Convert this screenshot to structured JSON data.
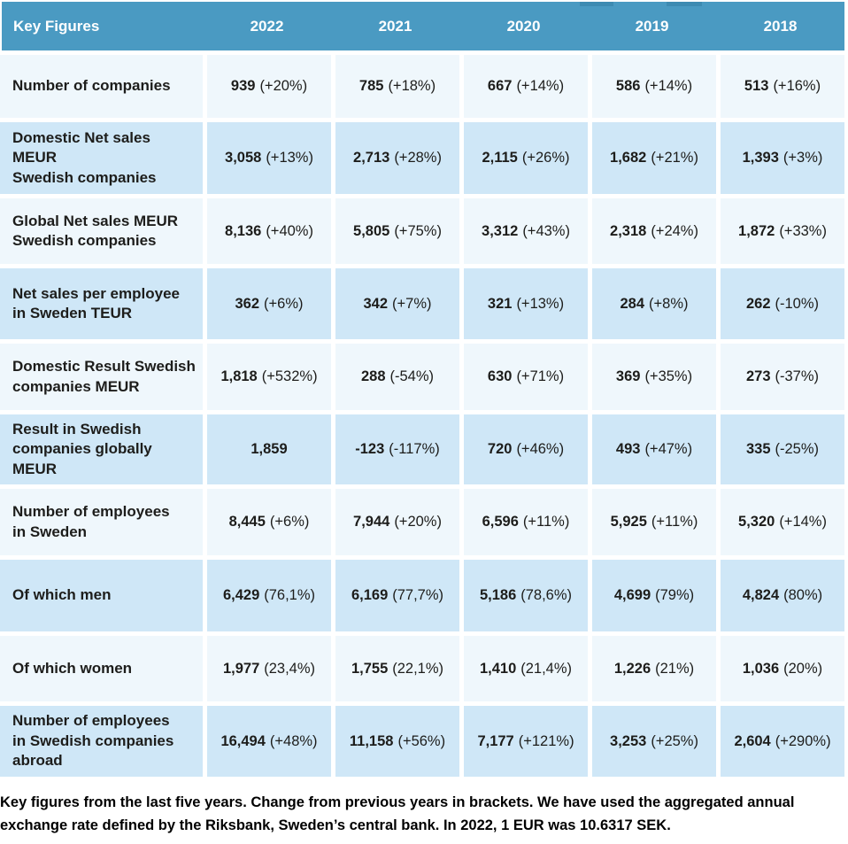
{
  "table": {
    "header": {
      "label": "Key Figures",
      "years": [
        "2022",
        "2021",
        "2020",
        "2019",
        "2018"
      ]
    },
    "rows": [
      {
        "label": "Number of companies",
        "cells": [
          {
            "num": "939",
            "change": "(+20%)"
          },
          {
            "num": "785",
            "change": "(+18%)"
          },
          {
            "num": "667",
            "change": "(+14%)"
          },
          {
            "num": "586",
            "change": "(+14%)"
          },
          {
            "num": "513",
            "change": "(+16%)"
          }
        ]
      },
      {
        "label": "Domestic Net sales MEUR\nSwedish companies",
        "cells": [
          {
            "num": "3,058",
            "change": "(+13%)"
          },
          {
            "num": "2,713",
            "change": "(+28%)"
          },
          {
            "num": "2,115",
            "change": "(+26%)"
          },
          {
            "num": "1,682",
            "change": "(+21%)"
          },
          {
            "num": "1,393",
            "change": "(+3%)"
          }
        ]
      },
      {
        "label": "Global Net sales MEUR\nSwedish companies",
        "cells": [
          {
            "num": "8,136",
            "change": "(+40%)"
          },
          {
            "num": "5,805",
            "change": "(+75%)"
          },
          {
            "num": "3,312",
            "change": "(+43%)"
          },
          {
            "num": "2,318",
            "change": "(+24%)"
          },
          {
            "num": "1,872",
            "change": "(+33%)"
          }
        ]
      },
      {
        "label": "Net sales per employee\nin Sweden TEUR",
        "cells": [
          {
            "num": "362",
            "change": "(+6%)"
          },
          {
            "num": "342",
            "change": "(+7%)"
          },
          {
            "num": "321",
            "change": "(+13%)"
          },
          {
            "num": "284",
            "change": "(+8%)"
          },
          {
            "num": "262",
            "change": "(-10%)"
          }
        ]
      },
      {
        "label": "Domestic Result Swedish\ncompanies MEUR",
        "cells": [
          {
            "num": "1,818",
            "change": "(+532%)"
          },
          {
            "num": "288",
            "change": "(-54%)"
          },
          {
            "num": "630",
            "change": "(+71%)"
          },
          {
            "num": "369",
            "change": "(+35%)"
          },
          {
            "num": "273",
            "change": "(-37%)"
          }
        ]
      },
      {
        "label": "Result in Swedish\ncompanies globally MEUR",
        "cells": [
          {
            "num": "1,859",
            "change": ""
          },
          {
            "num": "-123",
            "change": "(-117%)"
          },
          {
            "num": "720",
            "change": "(+46%)"
          },
          {
            "num": "493",
            "change": "(+47%)"
          },
          {
            "num": "335",
            "change": "(-25%)"
          }
        ]
      },
      {
        "label": "Number of employees\nin Sweden",
        "cells": [
          {
            "num": "8,445",
            "change": "(+6%)"
          },
          {
            "num": "7,944",
            "change": "(+20%)"
          },
          {
            "num": "6,596",
            "change": "(+11%)"
          },
          {
            "num": "5,925",
            "change": "(+11%)"
          },
          {
            "num": "5,320",
            "change": "(+14%)"
          }
        ]
      },
      {
        "label": "Of which men",
        "cells": [
          {
            "num": "6,429",
            "change": "(76,1%)"
          },
          {
            "num": "6,169",
            "change": "(77,7%)"
          },
          {
            "num": "5,186",
            "change": "(78,6%)"
          },
          {
            "num": "4,699",
            "change": "(79%)"
          },
          {
            "num": "4,824",
            "change": "(80%)"
          }
        ]
      },
      {
        "label": "Of which women",
        "cells": [
          {
            "num": "1,977",
            "change": "(23,4%)"
          },
          {
            "num": "1,755",
            "change": "(22,1%)"
          },
          {
            "num": "1,410",
            "change": "(21,4%)"
          },
          {
            "num": "1,226",
            "change": "(21%)"
          },
          {
            "num": "1,036",
            "change": "(20%)"
          }
        ]
      },
      {
        "label": "Number of employees\nin Swedish companies\nabroad",
        "cells": [
          {
            "num": "16,494",
            "change": "(+48%)"
          },
          {
            "num": "11,158",
            "change": "(+56%)"
          },
          {
            "num": "7,177",
            "change": "(+121%)"
          },
          {
            "num": "3,253",
            "change": "(+25%)"
          },
          {
            "num": "2,604",
            "change": "(+290%)"
          }
        ]
      }
    ]
  },
  "caption": "Key figures from the last five years. Change from previous years in brackets. We have used the aggregated annual exchange rate defined by the Riksbank, Sweden’s central bank. In 2022, 1 EUR was 10.6317 SEK.",
  "colors": {
    "header_bg": "#4a9ac2",
    "header_text": "#ffffff",
    "row_light_blue": "#cfe7f7",
    "row_pale": "#eff7fc",
    "separator": "#ffffff",
    "text": "#1d1d1b",
    "top_accent": "#3e8bb2"
  },
  "chart_data": {
    "type": "table",
    "title": "Key Figures",
    "columns": [
      "Key Figures",
      "2022",
      "2021",
      "2020",
      "2019",
      "2018"
    ],
    "rows": [
      [
        "Number of companies",
        "939 (+20%)",
        "785 (+18%)",
        "667 (+14%)",
        "586 (+14%)",
        "513 (+16%)"
      ],
      [
        "Domestic Net sales MEUR Swedish companies",
        "3,058 (+13%)",
        "2,713 (+28%)",
        "2,115 (+26%)",
        "1,682 (+21%)",
        "1,393 (+3%)"
      ],
      [
        "Global Net sales MEUR Swedish companies",
        "8,136 (+40%)",
        "5,805 (+75%)",
        "3,312 (+43%)",
        "2,318 (+24%)",
        "1,872 (+33%)"
      ],
      [
        "Net sales per employee in Sweden TEUR",
        "362 (+6%)",
        "342 (+7%)",
        "321 (+13%)",
        "284 (+8%)",
        "262 (-10%)"
      ],
      [
        "Domestic Result Swedish companies MEUR",
        "1,818 (+532%)",
        "288 (-54%)",
        "630 (+71%)",
        "369 (+35%)",
        "273 (-37%)"
      ],
      [
        "Result in Swedish companies globally MEUR",
        "1,859",
        "-123 (-117%)",
        "720 (+46%)",
        "493 (+47%)",
        "335 (-25%)"
      ],
      [
        "Number of employees in Sweden",
        "8,445 (+6%)",
        "7,944 (+20%)",
        "6,596 (+11%)",
        "5,925 (+11%)",
        "5,320 (+14%)"
      ],
      [
        "Of which men",
        "6,429 (76,1%)",
        "6,169 (77,7%)",
        "5,186 (78,6%)",
        "4,699 (79%)",
        "4,824 (80%)"
      ],
      [
        "Of which women",
        "1,977 (23,4%)",
        "1,755 (22,1%)",
        "1,410 (21,4%)",
        "1,226 (21%)",
        "1,036 (20%)"
      ],
      [
        "Number of employees in Swedish companies abroad",
        "16,494 (+48%)",
        "11,158 (+56%)",
        "7,177 (+121%)",
        "3,253 (+25%)",
        "2,604 (+290%)"
      ]
    ],
    "caption": "Key figures from the last five years. Change from previous years in brackets. We have used the aggregated annual exchange rate defined by the Riksbank, Sweden’s central bank. In 2022, 1 EUR was 10.6317 SEK."
  }
}
